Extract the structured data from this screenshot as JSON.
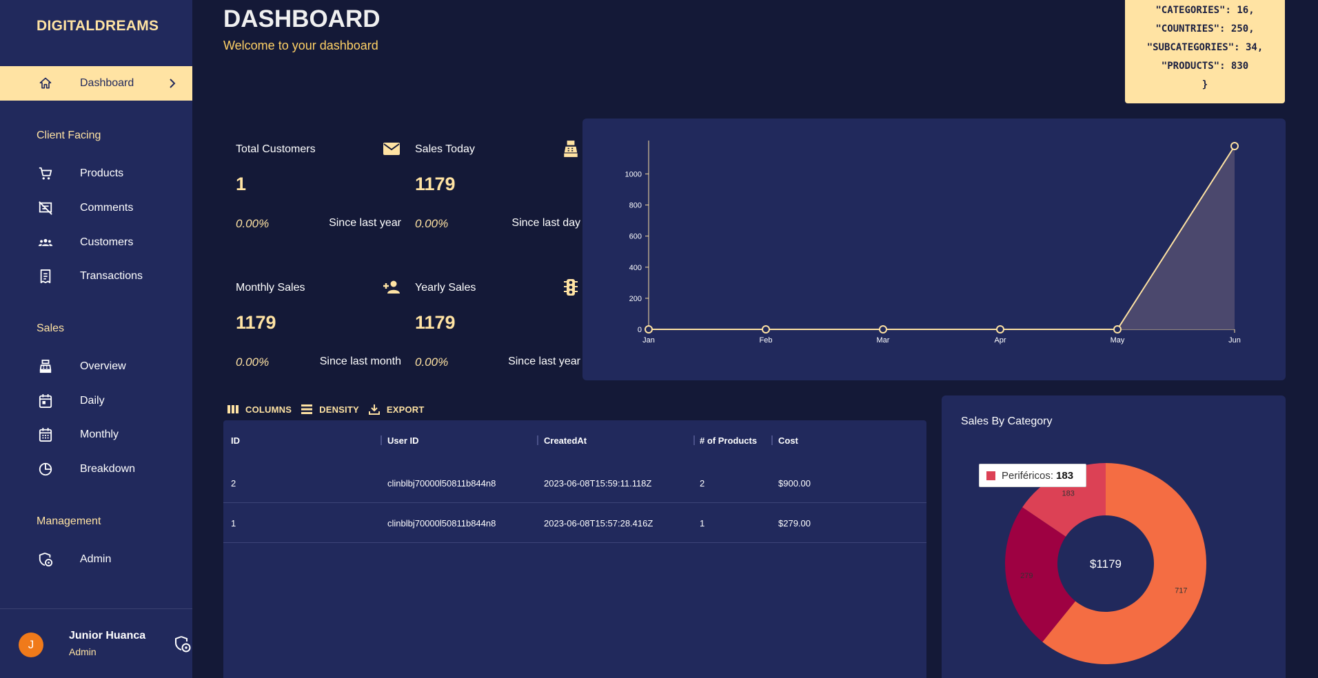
{
  "brand": "DIGITALDREAMS",
  "nav": {
    "dashboard": "Dashboard",
    "sections": {
      "client": "Client Facing",
      "sales": "Sales",
      "management": "Management"
    },
    "items": {
      "products": "Products",
      "comments": "Comments",
      "customers": "Customers",
      "transactions": "Transactions",
      "overview": "Overview",
      "daily": "Daily",
      "monthly": "Monthly",
      "breakdown": "Breakdown",
      "admin": "Admin"
    }
  },
  "user": {
    "initial": "J",
    "name": "Junior Huanca",
    "role": "Admin"
  },
  "header": {
    "title": "DASHBOARD",
    "subtitle": "Welcome to your dashboard"
  },
  "json_box": {
    "l1": "\"CATEGORIES\": 16,",
    "l2": "\"COUNTRIES\": 250,",
    "l3": "\"SUBCATEGORIES\": 34,",
    "l4": "\"PRODUCTS\": 830",
    "l5": "}"
  },
  "stats": [
    {
      "title": "Total Customers",
      "value": "1",
      "pct": "0.00%",
      "since": "Since last year",
      "icon": "email-icon"
    },
    {
      "title": "Sales Today",
      "value": "1179",
      "pct": "0.00%",
      "since": "Since last day",
      "icon": "point-of-sale-icon"
    },
    {
      "title": "Monthly Sales",
      "value": "1179",
      "pct": "0.00%",
      "since": "Since last month",
      "icon": "person-add-icon"
    },
    {
      "title": "Yearly Sales",
      "value": "1179",
      "pct": "0.00%",
      "since": "Since last year",
      "icon": "traffic-icon"
    }
  ],
  "toolbar": {
    "columns": "COLUMNS",
    "density": "DENSITY",
    "export": "EXPORT"
  },
  "table": {
    "headers": [
      "ID",
      "User ID",
      "CreatedAt",
      "# of Products",
      "Cost"
    ],
    "rows": [
      [
        "2",
        "clinblbj70000l50811b844n8",
        "2023-06-08T15:59:11.118Z",
        "2",
        "$900.00"
      ],
      [
        "1",
        "clinblbj70000l50811b844n8",
        "2023-06-08T15:57:28.416Z",
        "1",
        "$279.00"
      ]
    ]
  },
  "pie": {
    "title": "Sales By Category",
    "tooltip_label": "Periféricos:",
    "tooltip_value": "183"
  },
  "colors": {
    "accent": "#ffe3a3",
    "panel": "#21295c",
    "background": "#141937",
    "line": "#ffe3a3",
    "area": "#4e4a6e"
  },
  "chart_data": [
    {
      "type": "area",
      "title": "",
      "xlabel": "",
      "ylabel": "",
      "categories": [
        "Jan",
        "Feb",
        "Mar",
        "Apr",
        "May",
        "Jun"
      ],
      "values": [
        0,
        0,
        0,
        0,
        0,
        1179
      ],
      "ylim": [
        0,
        1179
      ],
      "yticks": [
        0,
        200,
        400,
        600,
        800,
        1000
      ],
      "grid": false
    },
    {
      "type": "pie",
      "title": "Sales By Category",
      "center_label": "$1179",
      "slices": [
        {
          "label": "Periféricos",
          "value": 183,
          "color": "#dc4155"
        },
        {
          "label": "",
          "value": 717,
          "color": "#f46d43"
        },
        {
          "label": "",
          "value": 279,
          "color": "#9e0142"
        }
      ]
    }
  ]
}
